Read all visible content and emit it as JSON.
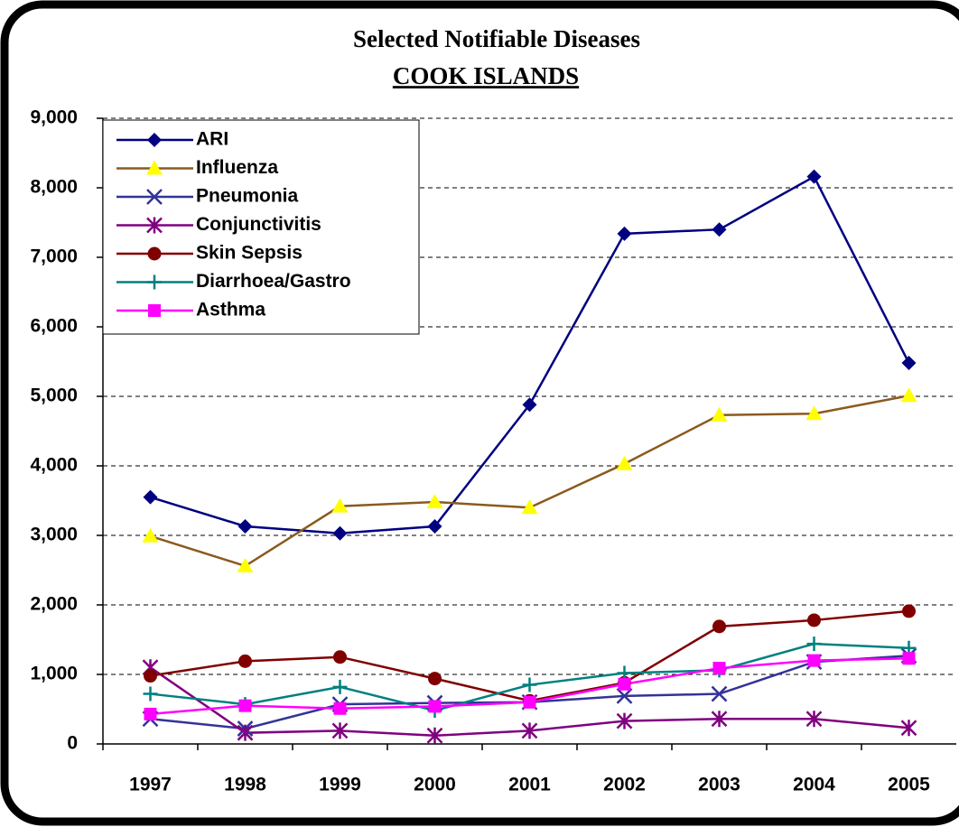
{
  "chart_data": {
    "type": "line",
    "title": "Selected Notifiable Diseases",
    "subtitle": "COOK ISLANDS",
    "categories": [
      "1997",
      "1998",
      "1999",
      "2000",
      "2001",
      "2002",
      "2003",
      "2004",
      "2005"
    ],
    "ylim": [
      0,
      9000
    ],
    "yticks": [
      0,
      {
        "value": 1000,
        "label": "1,000"
      },
      {
        "value": 2000,
        "label": "2,000"
      },
      {
        "value": 3000,
        "label": "3,000"
      },
      {
        "value": 4000,
        "label": "4,000"
      },
      {
        "value": 5000,
        "label": "5,000"
      },
      {
        "value": 6000,
        "label": "6,000"
      },
      {
        "value": 7000,
        "label": "7,000"
      },
      {
        "value": 8000,
        "label": "8,000"
      },
      {
        "value": 9000,
        "label": "9,000"
      }
    ],
    "grid": true,
    "legend": "top-left",
    "series": [
      {
        "name": "ARI",
        "color": "#000080",
        "marker_color": "#000080",
        "marker": "diamond",
        "values": [
          3550,
          3130,
          3030,
          3130,
          4880,
          7340,
          7400,
          8160,
          5480
        ]
      },
      {
        "name": "Influenza",
        "color": "#8B5A1E",
        "marker_color": "#FFFF00",
        "marker": "triangle",
        "values": [
          2990,
          2560,
          3420,
          3480,
          3400,
          4030,
          4730,
          4750,
          5010
        ]
      },
      {
        "name": "Pneumonia",
        "color": "#333399",
        "marker_color": "#333399",
        "marker": "x",
        "values": [
          360,
          220,
          570,
          590,
          600,
          690,
          720,
          1180,
          1270
        ]
      },
      {
        "name": "Conjunctivitis",
        "color": "#800080",
        "marker_color": "#800080",
        "marker": "star",
        "values": [
          1100,
          160,
          190,
          120,
          190,
          330,
          360,
          360,
          230
        ]
      },
      {
        "name": "Skin Sepsis",
        "color": "#800000",
        "marker_color": "#800000",
        "marker": "circle",
        "values": [
          980,
          1190,
          1250,
          940,
          620,
          880,
          1690,
          1780,
          1910
        ]
      },
      {
        "name": "Diarrhoea/Gastro",
        "color": "#008080",
        "marker_color": "#008080",
        "marker": "plus",
        "values": [
          720,
          570,
          820,
          480,
          850,
          1020,
          1060,
          1440,
          1380
        ]
      },
      {
        "name": "Asthma",
        "color": "#FF00FF",
        "marker_color": "#FF00FF",
        "marker": "square",
        "values": [
          430,
          550,
          510,
          540,
          600,
          860,
          1090,
          1200,
          1230
        ]
      }
    ]
  }
}
